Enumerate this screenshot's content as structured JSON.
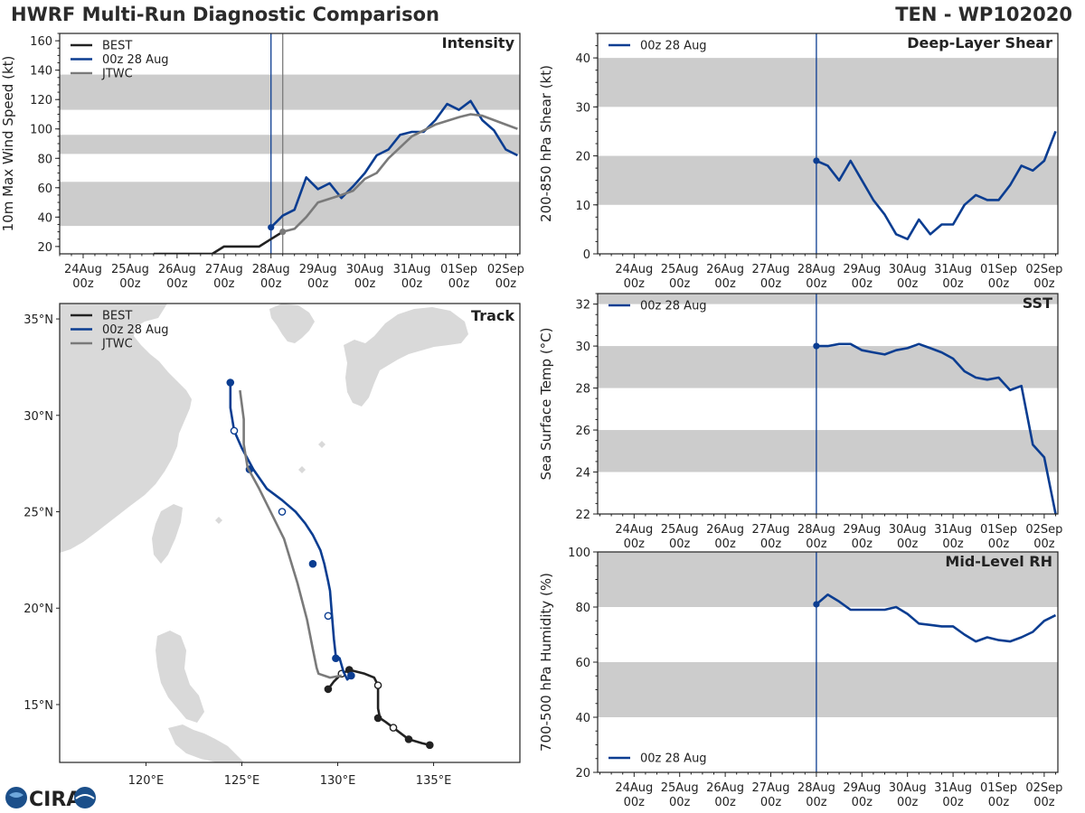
{
  "header": {
    "left_title": "HWRF Multi-Run Diagnostic Comparison",
    "right_title": "TEN - WP102020"
  },
  "logo": {
    "text": "CIRA"
  },
  "colors": {
    "best": "#222222",
    "run": "#0b3d91",
    "jtwc": "#7a7a7a",
    "band": "#cccccc",
    "land": "#d9d9d9"
  },
  "chart_data": [
    {
      "id": "intensity",
      "type": "line",
      "title": "Intensity",
      "ylabel": "10m Max Wind Speed (kt)",
      "ylim": [
        15,
        165
      ],
      "yticks": [
        20,
        40,
        60,
        80,
        100,
        120,
        140,
        160
      ],
      "xlim": [
        -4.5,
        5.3
      ],
      "xticks": [
        -4,
        -3,
        -2,
        -1,
        0,
        1,
        2,
        3,
        4,
        5
      ],
      "xticklabels": [
        [
          "24Aug",
          "00z"
        ],
        [
          "25Aug",
          "00z"
        ],
        [
          "26Aug",
          "00z"
        ],
        [
          "27Aug",
          "00z"
        ],
        [
          "28Aug",
          "00z"
        ],
        [
          "29Aug",
          "00z"
        ],
        [
          "30Aug",
          "00z"
        ],
        [
          "31Aug",
          "00z"
        ],
        [
          "01Sep",
          "00z"
        ],
        [
          "02Sep",
          "00z"
        ]
      ],
      "bands": [
        [
          34,
          64
        ],
        [
          83,
          96
        ],
        [
          113,
          137
        ]
      ],
      "vlines": [
        {
          "x": 0,
          "color": "run"
        },
        {
          "x": 0.25,
          "color": "jtwc"
        }
      ],
      "legend": [
        "BEST",
        "00z 28 Aug",
        "JTWC"
      ],
      "series": [
        {
          "name": "BEST",
          "color": "best",
          "x": [
            -2.5,
            -2.25,
            -2.0,
            -1.75,
            -1.5,
            -1.25,
            -1.0,
            -0.75,
            -0.5,
            -0.25,
            0.0,
            0.25
          ],
          "y": [
            15,
            15,
            15,
            15,
            15,
            15,
            20,
            20,
            20,
            20,
            25,
            30
          ]
        },
        {
          "name": "00z 28 Aug",
          "color": "run",
          "marker": "start",
          "x": [
            0,
            0.25,
            0.5,
            0.75,
            1.0,
            1.25,
            1.5,
            1.75,
            2.0,
            2.25,
            2.5,
            2.75,
            3.0,
            3.25,
            3.5,
            3.75,
            4.0,
            4.25,
            4.5,
            4.75,
            5.0,
            5.25
          ],
          "y": [
            33,
            41,
            45,
            67,
            59,
            63,
            53,
            61,
            70,
            82,
            86,
            96,
            98,
            98,
            106,
            117,
            113,
            119,
            106,
            99,
            86,
            82
          ]
        },
        {
          "name": "JTWC",
          "color": "jtwc",
          "marker": "start",
          "x": [
            0.25,
            0.5,
            0.75,
            1.0,
            1.5,
            1.75,
            2.0,
            2.25,
            2.5,
            3.0,
            3.5,
            4.0,
            4.25,
            4.5,
            5.0,
            5.25
          ],
          "y": [
            30,
            32,
            40,
            50,
            55,
            58,
            66,
            70,
            80,
            95,
            103,
            108,
            110,
            109,
            103,
            100
          ]
        }
      ]
    },
    {
      "id": "shear",
      "type": "line",
      "title": "Deep-Layer Shear",
      "ylabel": "200-850 hPa Shear (kt)",
      "ylim": [
        0,
        45
      ],
      "yticks": [
        0,
        10,
        20,
        30,
        40
      ],
      "xlim": [
        -4.8,
        5.3
      ],
      "xticks": [
        -4,
        -3,
        -2,
        -1,
        0,
        1,
        2,
        3,
        4,
        5
      ],
      "xticklabels": [
        [
          "24Aug",
          "00z"
        ],
        [
          "25Aug",
          "00z"
        ],
        [
          "26Aug",
          "00z"
        ],
        [
          "27Aug",
          "00z"
        ],
        [
          "28Aug",
          "00z"
        ],
        [
          "29Aug",
          "00z"
        ],
        [
          "30Aug",
          "00z"
        ],
        [
          "31Aug",
          "00z"
        ],
        [
          "01Sep",
          "00z"
        ],
        [
          "02Sep",
          "00z"
        ]
      ],
      "bands": [
        [
          10,
          20
        ],
        [
          30,
          40
        ]
      ],
      "vlines": [
        {
          "x": 0,
          "color": "run"
        }
      ],
      "legend": [
        "00z 28 Aug"
      ],
      "series": [
        {
          "name": "00z 28 Aug",
          "color": "run",
          "marker": "start",
          "x": [
            0,
            0.25,
            0.5,
            0.75,
            1.0,
            1.25,
            1.5,
            1.75,
            2.0,
            2.25,
            2.5,
            2.75,
            3.0,
            3.25,
            3.5,
            3.75,
            4.0,
            4.25,
            4.5,
            4.75,
            5.0,
            5.25
          ],
          "y": [
            19,
            18,
            15,
            19,
            15,
            11,
            8,
            4,
            3,
            7,
            4,
            6,
            6,
            10,
            12,
            11,
            11,
            14,
            18,
            17,
            19,
            25
          ]
        }
      ]
    },
    {
      "id": "sst",
      "type": "line",
      "title": "SST",
      "ylabel": "Sea Surface Temp (°C)",
      "ylim": [
        22,
        32.5
      ],
      "yticks": [
        22,
        24,
        26,
        28,
        30,
        32
      ],
      "xlim": [
        -4.8,
        5.3
      ],
      "xticks": [
        -4,
        -3,
        -2,
        -1,
        0,
        1,
        2,
        3,
        4,
        5
      ],
      "xticklabels": [
        [
          "24Aug",
          "00z"
        ],
        [
          "25Aug",
          "00z"
        ],
        [
          "26Aug",
          "00z"
        ],
        [
          "27Aug",
          "00z"
        ],
        [
          "28Aug",
          "00z"
        ],
        [
          "29Aug",
          "00z"
        ],
        [
          "30Aug",
          "00z"
        ],
        [
          "31Aug",
          "00z"
        ],
        [
          "01Sep",
          "00z"
        ],
        [
          "02Sep",
          "00z"
        ]
      ],
      "bands": [
        [
          24,
          26
        ],
        [
          28,
          30
        ],
        [
          32,
          32.5
        ]
      ],
      "vlines": [
        {
          "x": 0,
          "color": "run"
        }
      ],
      "legend": [
        "00z 28 Aug"
      ],
      "series": [
        {
          "name": "00z 28 Aug",
          "color": "run",
          "marker": "start",
          "x": [
            0,
            0.25,
            0.5,
            0.75,
            1.0,
            1.25,
            1.5,
            1.75,
            2.0,
            2.25,
            2.5,
            2.75,
            3.0,
            3.25,
            3.5,
            3.75,
            4.0,
            4.25,
            4.5,
            4.75,
            5.0,
            5.25
          ],
          "y": [
            30.0,
            30.0,
            30.1,
            30.1,
            29.8,
            29.7,
            29.6,
            29.8,
            29.9,
            30.1,
            29.9,
            29.7,
            29.4,
            28.8,
            28.5,
            28.4,
            28.5,
            27.9,
            28.1,
            25.3,
            24.7,
            22.0
          ]
        }
      ]
    },
    {
      "id": "rh",
      "type": "line",
      "title": "Mid-Level RH",
      "ylabel": "700-500 hPa Humidity (%)",
      "ylim": [
        20,
        100
      ],
      "yticks": [
        20,
        40,
        60,
        80,
        100
      ],
      "xlim": [
        -4.8,
        5.3
      ],
      "xticks": [
        -4,
        -3,
        -2,
        -1,
        0,
        1,
        2,
        3,
        4,
        5
      ],
      "xticklabels": [
        [
          "24Aug",
          "00z"
        ],
        [
          "25Aug",
          "00z"
        ],
        [
          "26Aug",
          "00z"
        ],
        [
          "27Aug",
          "00z"
        ],
        [
          "28Aug",
          "00z"
        ],
        [
          "29Aug",
          "00z"
        ],
        [
          "30Aug",
          "00z"
        ],
        [
          "31Aug",
          "00z"
        ],
        [
          "01Sep",
          "00z"
        ],
        [
          "02Sep",
          "00z"
        ]
      ],
      "bands": [
        [
          40,
          60
        ],
        [
          80,
          100
        ]
      ],
      "vlines": [
        {
          "x": 0,
          "color": "run"
        }
      ],
      "legend": [
        "00z 28 Aug"
      ],
      "legend_position": "bottom-left",
      "series": [
        {
          "name": "00z 28 Aug",
          "color": "run",
          "marker": "start",
          "x": [
            0,
            0.25,
            0.5,
            0.75,
            1.0,
            1.25,
            1.5,
            1.75,
            2.0,
            2.25,
            2.5,
            2.75,
            3.0,
            3.25,
            3.5,
            3.75,
            4.0,
            4.25,
            4.5,
            4.75,
            5.0,
            5.25
          ],
          "y": [
            81,
            84.5,
            82,
            79,
            79,
            79,
            79,
            80,
            77.5,
            74,
            73.5,
            73,
            73,
            70,
            67.5,
            69,
            68,
            67.5,
            69,
            71,
            75,
            77
          ]
        }
      ]
    },
    {
      "id": "track",
      "type": "scatter",
      "title": "Track",
      "xlim": [
        115.5,
        139.5
      ],
      "ylim": [
        12.0,
        35.8
      ],
      "xticks": [
        120,
        125,
        130,
        135
      ],
      "xticklabels": [
        "120°E",
        "125°E",
        "130°E",
        "135°E"
      ],
      "yticks": [
        15,
        20,
        25,
        30,
        35
      ],
      "yticklabels": [
        "15°N",
        "20°N",
        "25°N",
        "30°N",
        "35°N"
      ],
      "legend": [
        "BEST",
        "00z 28 Aug",
        "JTWC"
      ],
      "series": [
        {
          "name": "BEST",
          "color": "best",
          "lon": [
            134.8,
            134.4,
            133.7,
            132.9,
            132.5,
            132.2,
            132.1,
            132.1,
            132.1,
            131.9,
            131.4,
            130.6,
            130.2,
            129.8,
            129.5
          ],
          "lat": [
            12.9,
            13.0,
            13.2,
            13.8,
            14.1,
            14.3,
            14.8,
            15.5,
            16.0,
            16.4,
            16.6,
            16.8,
            16.6,
            16.2,
            15.8
          ],
          "markers": [
            [
              134.8,
              12.9,
              "filled"
            ],
            [
              133.7,
              13.2,
              "filled"
            ],
            [
              132.9,
              13.8,
              "open"
            ],
            [
              132.1,
              14.3,
              "filled"
            ],
            [
              132.1,
              16.0,
              "open"
            ],
            [
              130.6,
              16.8,
              "filled"
            ],
            [
              130.2,
              16.6,
              "open"
            ],
            [
              129.5,
              15.8,
              "filled"
            ]
          ]
        },
        {
          "name": "00z 28 Aug",
          "color": "run",
          "lon": [
            130.7,
            130.5,
            130.3,
            130.1,
            129.9,
            129.8,
            129.7,
            129.6,
            129.5,
            129.3,
            129.1,
            128.7,
            128.3,
            127.8,
            127.1,
            126.3,
            125.6,
            125.0,
            124.6,
            124.4,
            124.4
          ],
          "lat": [
            16.5,
            16.3,
            16.7,
            17.4,
            17.5,
            18.4,
            19.6,
            20.9,
            21.4,
            22.3,
            23.0,
            23.8,
            24.4,
            25.0,
            25.6,
            26.2,
            27.2,
            28.3,
            29.2,
            30.4,
            31.7
          ],
          "markers": [
            [
              130.7,
              16.5,
              "filled"
            ],
            [
              129.9,
              17.4,
              "filled"
            ],
            [
              129.5,
              19.6,
              "open"
            ],
            [
              128.7,
              22.3,
              "filled"
            ],
            [
              127.1,
              25.0,
              "open"
            ],
            [
              125.4,
              27.2,
              "filled"
            ],
            [
              124.6,
              29.2,
              "open"
            ],
            [
              124.4,
              31.7,
              "filled"
            ]
          ]
        },
        {
          "name": "JTWC",
          "color": "jtwc",
          "lon": [
            130.2,
            129.6,
            129.0,
            128.9,
            128.7,
            128.4,
            127.9,
            127.2,
            126.4,
            125.9,
            125.3,
            125.1,
            125.1,
            124.9
          ],
          "lat": [
            16.5,
            16.4,
            16.6,
            16.9,
            17.9,
            19.4,
            21.3,
            23.6,
            25.2,
            26.2,
            27.3,
            28.5,
            29.8,
            31.3
          ],
          "markers": []
        }
      ]
    }
  ]
}
